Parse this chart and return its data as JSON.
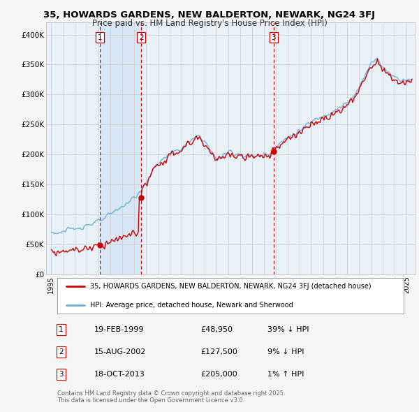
{
  "title_line1": "35, HOWARDS GARDENS, NEW BALDERTON, NEWARK, NG24 3FJ",
  "title_line2": "Price paid vs. HM Land Registry's House Price Index (HPI)",
  "ylim": [
    0,
    420000
  ],
  "yticks": [
    0,
    50000,
    100000,
    150000,
    200000,
    250000,
    300000,
    350000,
    400000
  ],
  "ytick_labels": [
    "£0",
    "£50K",
    "£100K",
    "£150K",
    "£200K",
    "£250K",
    "£300K",
    "£350K",
    "£400K"
  ],
  "hpi_color": "#6baed6",
  "price_color": "#cc0000",
  "vline_color": "#cc0000",
  "shade_color": "#ddeeff",
  "grid_color": "#cccccc",
  "background_color": "#f5f5f5",
  "plot_bg_color": "#e8f0f8",
  "sale_labels": [
    "1",
    "2",
    "3"
  ],
  "legend_label_red": "35, HOWARDS GARDENS, NEW BALDERTON, NEWARK, NG24 3FJ (detached house)",
  "legend_label_blue": "HPI: Average price, detached house, Newark and Sherwood",
  "annotation_rows": [
    {
      "label": "1",
      "date": "19-FEB-1999",
      "price": "£48,950",
      "hpi": "39% ↓ HPI"
    },
    {
      "label": "2",
      "date": "15-AUG-2002",
      "price": "£127,500",
      "hpi": "9% ↓ HPI"
    },
    {
      "label": "3",
      "date": "18-OCT-2013",
      "price": "£205,000",
      "hpi": "1% ↑ HPI"
    }
  ],
  "footnote": "Contains HM Land Registry data © Crown copyright and database right 2025.\nThis data is licensed under the Open Government Licence v3.0."
}
